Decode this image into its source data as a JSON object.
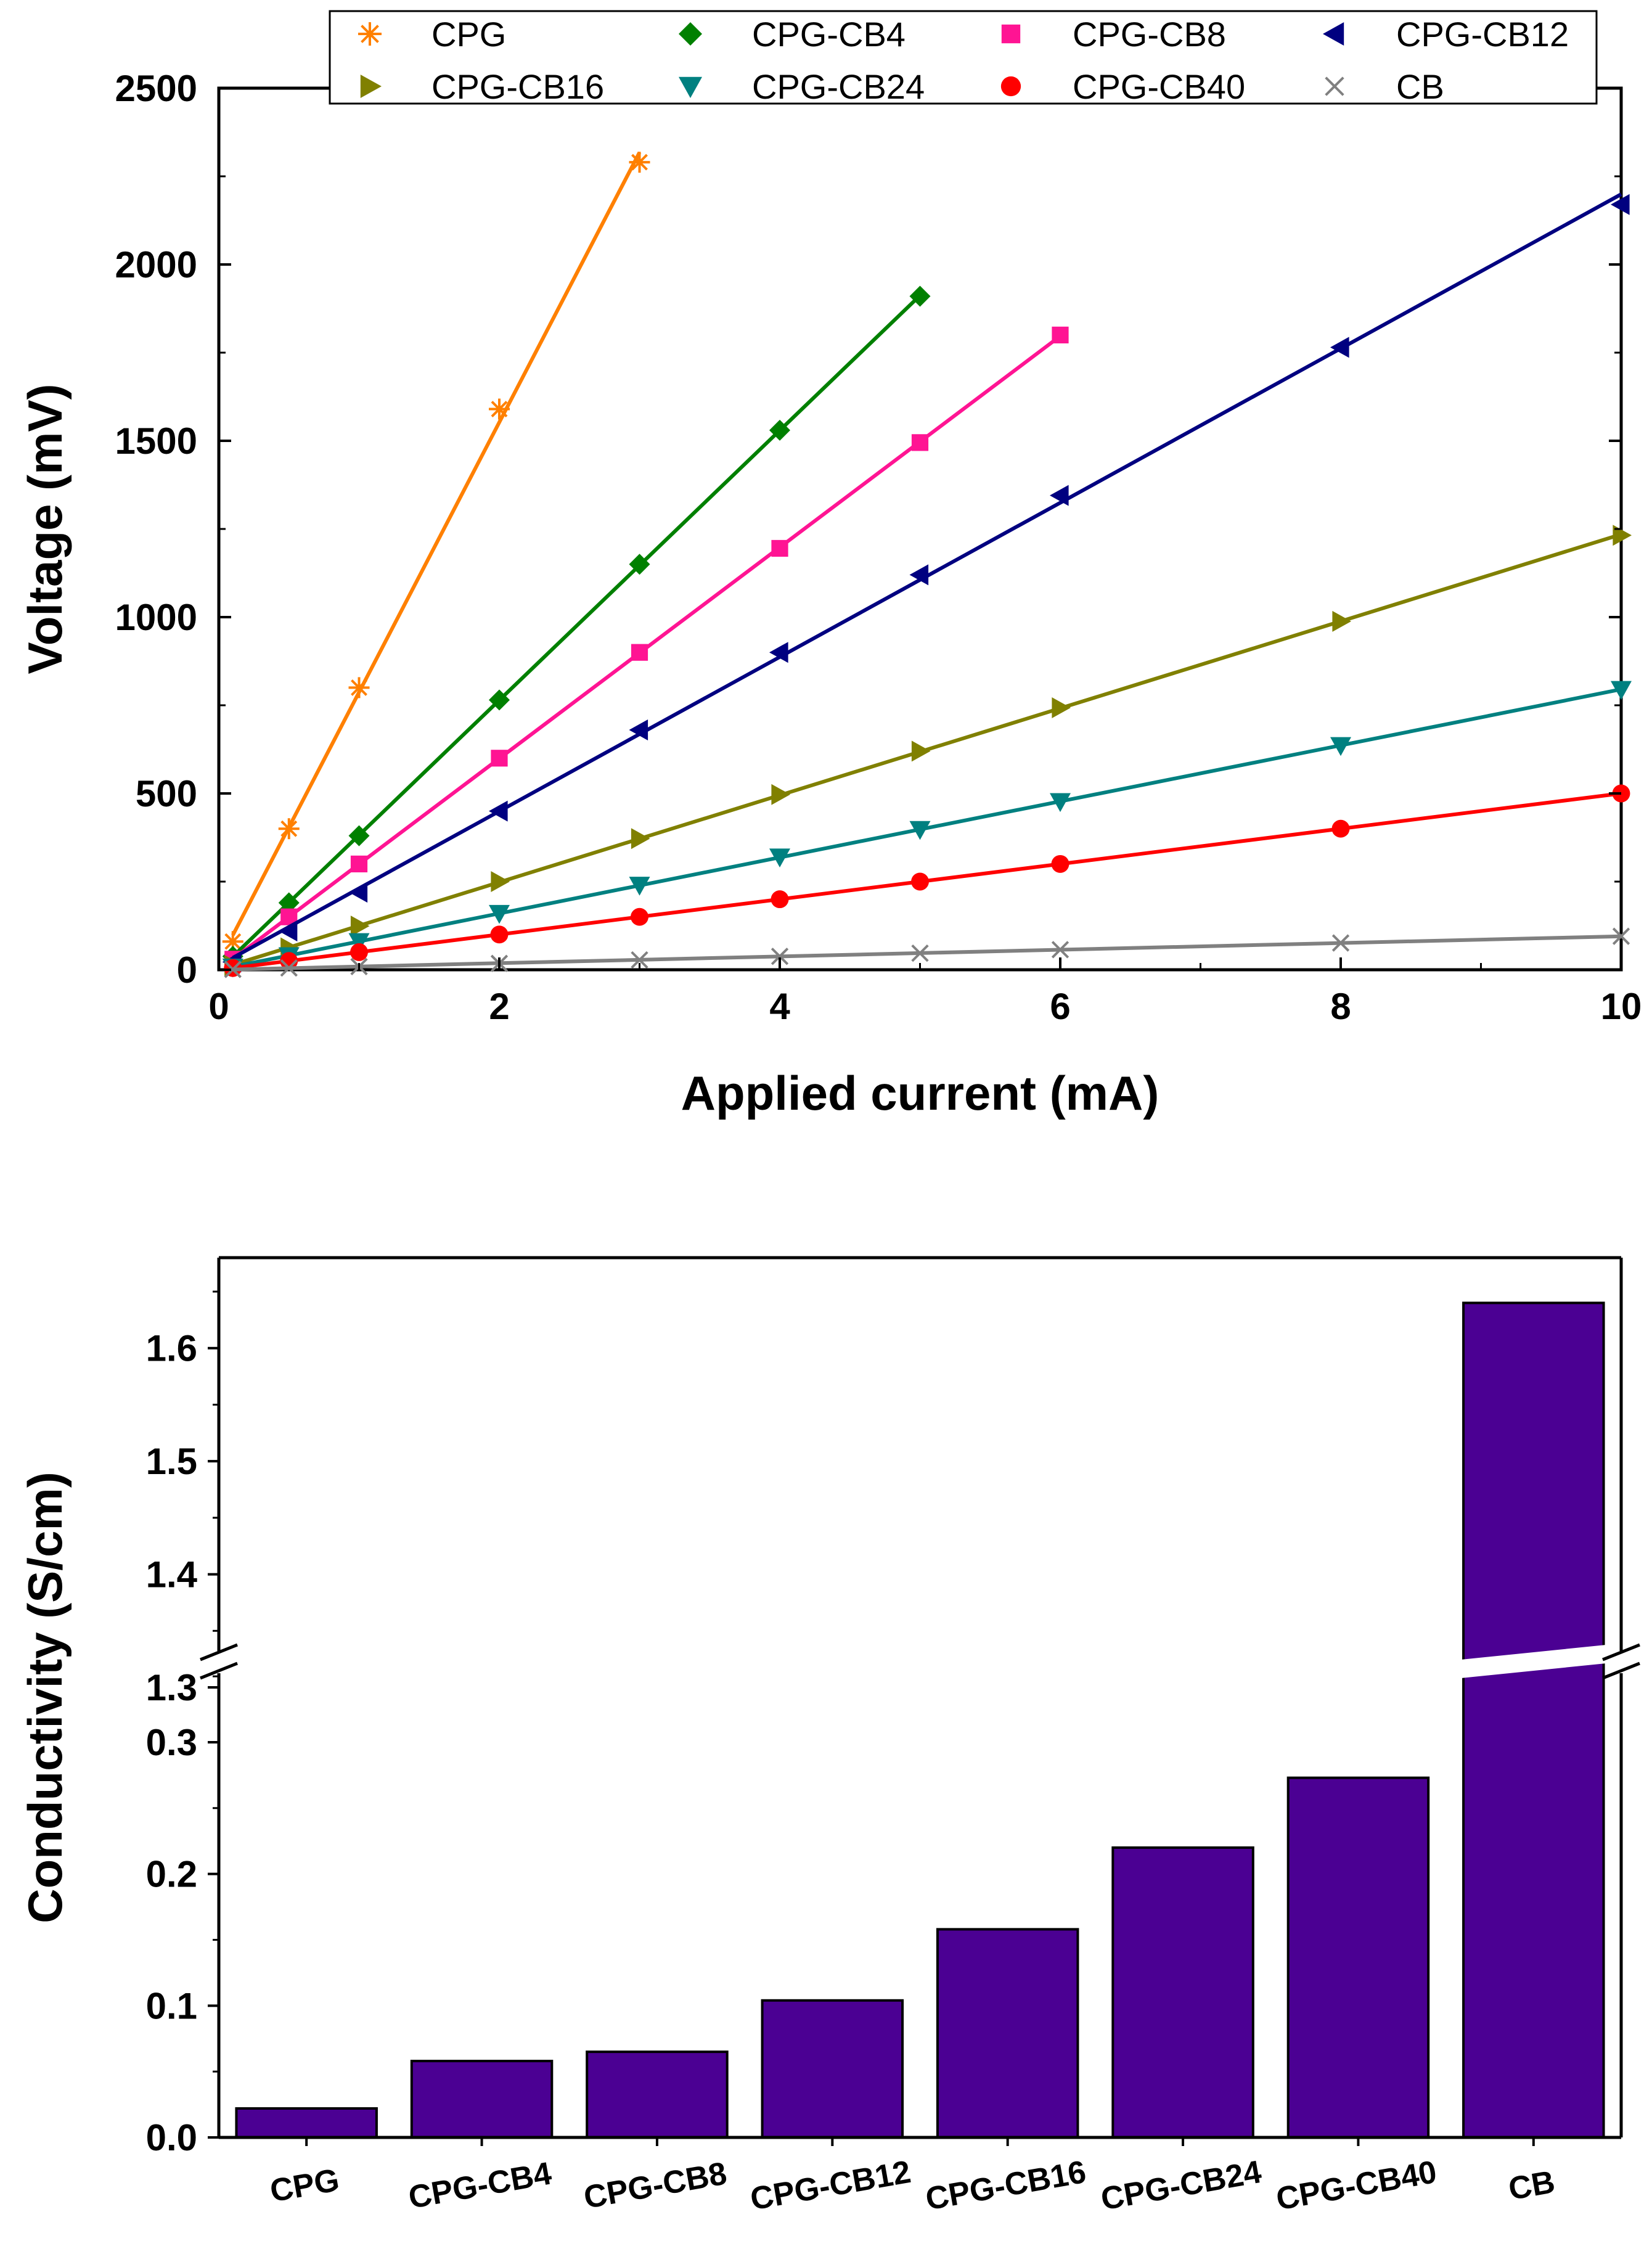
{
  "chart_data": [
    {
      "type": "line",
      "title": "",
      "xlabel": "Applied current (mA)",
      "ylabel": "Voltage (mV)",
      "xlim": [
        0,
        10
      ],
      "ylim": [
        0,
        2500
      ],
      "xticks": [
        "0",
        "2",
        "4",
        "6",
        "8",
        "10"
      ],
      "yticks": [
        "0",
        "500",
        "1000",
        "1500",
        "2000",
        "2500"
      ],
      "legend_position": "top",
      "series": [
        {
          "name": "CPG",
          "color": "#FF8000",
          "marker": "asterisk",
          "x": [
            0.1,
            0.5,
            1,
            2,
            3
          ],
          "y": [
            80,
            400,
            800,
            1590,
            2290
          ]
        },
        {
          "name": "CPG-CB4",
          "color": "#008000",
          "marker": "diamond",
          "x": [
            0.1,
            0.5,
            1,
            2,
            3,
            4,
            5
          ],
          "y": [
            38,
            190,
            380,
            765,
            1150,
            1530,
            1910
          ]
        },
        {
          "name": "CPG-CB8",
          "color": "#FF1493",
          "marker": "square",
          "x": [
            0.1,
            0.5,
            1,
            2,
            3,
            4,
            5,
            6
          ],
          "y": [
            30,
            150,
            300,
            600,
            900,
            1195,
            1495,
            1800
          ]
        },
        {
          "name": "CPG-CB12",
          "color": "#000080",
          "marker": "triangle-left",
          "x": [
            0.1,
            0.5,
            1,
            2,
            3,
            4,
            5,
            6,
            8,
            10
          ],
          "y": [
            22,
            110,
            220,
            450,
            680,
            900,
            1120,
            1345,
            1765,
            2170
          ]
        },
        {
          "name": "CPG-CB16",
          "color": "#808000",
          "marker": "triangle-right",
          "x": [
            0.1,
            0.5,
            1,
            2,
            3,
            4,
            5,
            6,
            8,
            10
          ],
          "y": [
            12,
            62,
            124,
            250,
            372,
            497,
            620,
            743,
            988,
            1232
          ]
        },
        {
          "name": "CPG-CB24",
          "color": "#008080",
          "marker": "triangle-down",
          "x": [
            0.1,
            0.5,
            1,
            2,
            3,
            4,
            5,
            6,
            8,
            10
          ],
          "y": [
            8,
            40,
            80,
            160,
            240,
            320,
            398,
            477,
            636,
            795
          ]
        },
        {
          "name": "CPG-CB40",
          "color": "#FF0000",
          "marker": "circle",
          "x": [
            0.1,
            0.5,
            1,
            2,
            3,
            4,
            5,
            6,
            8,
            10
          ],
          "y": [
            5,
            25,
            50,
            100,
            150,
            200,
            250,
            300,
            400,
            500
          ]
        },
        {
          "name": "CB",
          "color": "#808080",
          "marker": "x",
          "x": [
            0.1,
            0.5,
            1,
            2,
            3,
            4,
            5,
            6,
            8,
            10
          ],
          "y": [
            1,
            5,
            9,
            18,
            28,
            38,
            47,
            57,
            76,
            95
          ]
        }
      ]
    },
    {
      "type": "bar",
      "title": "",
      "xlabel": "",
      "ylabel": "Conductivity (S/cm)",
      "bar_color": "#4B0093",
      "categories": [
        "CPG",
        "CPG-CB4",
        "CPG-CB8",
        "CPG-CB12",
        "CPG-CB16",
        "CPG-CB24",
        "CPG-CB40",
        "CB"
      ],
      "values": [
        0.022,
        0.058,
        0.065,
        0.104,
        0.158,
        0.22,
        0.273,
        1.64
      ],
      "axis_break": {
        "lower_range": [
          0,
          0.38
        ],
        "upper_range": [
          1.3,
          1.68
        ]
      },
      "yticks": [
        "0.0",
        "0.1",
        "0.2",
        "0.3",
        "1.3",
        "1.4",
        "1.5",
        "1.6"
      ],
      "yticks_values": [
        0,
        0.1,
        0.2,
        0.3,
        1.3,
        1.4,
        1.5,
        1.6
      ]
    }
  ]
}
